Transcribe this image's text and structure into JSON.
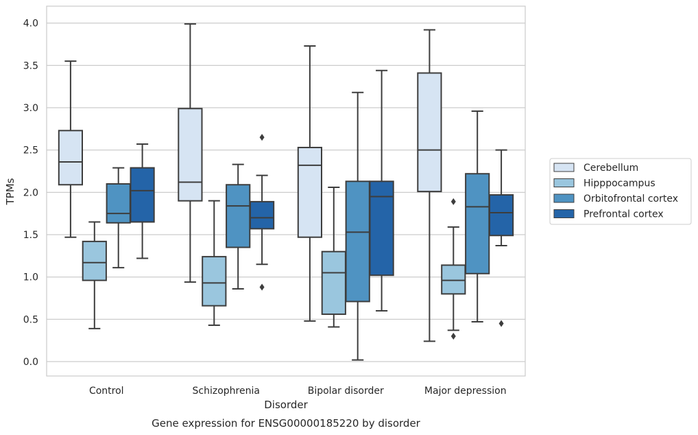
{
  "chart_data": {
    "type": "box",
    "title": "",
    "caption": "Gene expression for ENSG00000185220 by disorder",
    "xlabel": "Disorder",
    "ylabel": "TPMs",
    "ylim": [
      -0.17,
      4.2
    ],
    "yticks": [
      0.0,
      0.5,
      1.0,
      1.5,
      2.0,
      2.5,
      3.0,
      3.5,
      4.0
    ],
    "ytick_labels": [
      "0.0",
      "0.5",
      "1.0",
      "1.5",
      "2.0",
      "2.5",
      "3.0",
      "3.5",
      "4.0"
    ],
    "grid": "horizontal",
    "legend_position": "right",
    "categories": [
      "Control",
      "Schizophrenia",
      "Bipolar disorder",
      "Major depression"
    ],
    "series": [
      {
        "name": "Cerebellum",
        "color": "#d6e4f3",
        "boxes": [
          {
            "whisker_low": 1.47,
            "q1": 2.09,
            "median": 2.36,
            "q3": 2.73,
            "whisker_high": 3.55,
            "outliers": []
          },
          {
            "whisker_low": 0.94,
            "q1": 1.9,
            "median": 2.12,
            "q3": 2.99,
            "whisker_high": 3.99,
            "outliers": []
          },
          {
            "whisker_low": 0.48,
            "q1": 1.47,
            "median": 2.32,
            "q3": 2.53,
            "whisker_high": 3.73,
            "outliers": []
          },
          {
            "whisker_low": 0.24,
            "q1": 2.01,
            "median": 2.5,
            "q3": 3.41,
            "whisker_high": 3.92,
            "outliers": []
          }
        ]
      },
      {
        "name": "Hipppocampus",
        "color": "#9ac6de",
        "boxes": [
          {
            "whisker_low": 0.39,
            "q1": 0.96,
            "median": 1.17,
            "q3": 1.42,
            "whisker_high": 1.65,
            "outliers": []
          },
          {
            "whisker_low": 0.43,
            "q1": 0.66,
            "median": 0.93,
            "q3": 1.24,
            "whisker_high": 1.9,
            "outliers": []
          },
          {
            "whisker_low": 0.41,
            "q1": 0.56,
            "median": 1.05,
            "q3": 1.3,
            "whisker_high": 2.06,
            "outliers": []
          },
          {
            "whisker_low": 0.37,
            "q1": 0.8,
            "median": 0.96,
            "q3": 1.14,
            "whisker_high": 1.59,
            "outliers": [
              1.89,
              0.3
            ]
          }
        ]
      },
      {
        "name": "Orbitofrontal cortex",
        "color": "#4f93c2",
        "boxes": [
          {
            "whisker_low": 1.11,
            "q1": 1.64,
            "median": 1.75,
            "q3": 2.1,
            "whisker_high": 2.29,
            "outliers": []
          },
          {
            "whisker_low": 0.86,
            "q1": 1.35,
            "median": 1.84,
            "q3": 2.09,
            "whisker_high": 2.33,
            "outliers": []
          },
          {
            "whisker_low": 0.02,
            "q1": 0.71,
            "median": 1.53,
            "q3": 2.13,
            "whisker_high": 3.18,
            "outliers": []
          },
          {
            "whisker_low": 0.47,
            "q1": 1.04,
            "median": 1.83,
            "q3": 2.22,
            "whisker_high": 2.96,
            "outliers": []
          }
        ]
      },
      {
        "name": "Prefrontal cortex",
        "color": "#2464a8",
        "boxes": [
          {
            "whisker_low": 1.22,
            "q1": 1.65,
            "median": 2.02,
            "q3": 2.29,
            "whisker_high": 2.57,
            "outliers": []
          },
          {
            "whisker_low": 1.15,
            "q1": 1.57,
            "median": 1.7,
            "q3": 1.89,
            "whisker_high": 2.2,
            "outliers": [
              2.65,
              0.88
            ]
          },
          {
            "whisker_low": 0.6,
            "q1": 1.02,
            "median": 1.95,
            "q3": 2.13,
            "whisker_high": 3.44,
            "outliers": []
          },
          {
            "whisker_low": 1.37,
            "q1": 1.49,
            "median": 1.76,
            "q3": 1.97,
            "whisker_high": 2.5,
            "outliers": [
              0.45
            ]
          }
        ]
      }
    ]
  }
}
